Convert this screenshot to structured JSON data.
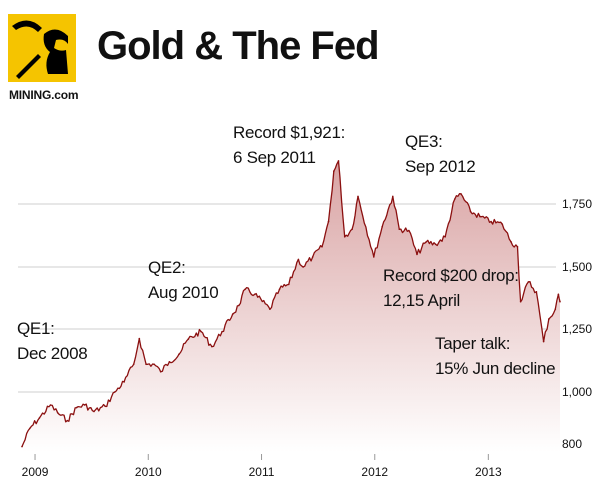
{
  "header": {
    "title": "Gold & The Fed",
    "brand": "MINING.com"
  },
  "annotations": [
    {
      "id": "qe1",
      "text": "QE1:\nDec 2008"
    },
    {
      "id": "qe2",
      "text": "QE2:\nAug 2010"
    },
    {
      "id": "record",
      "text": "Record $1,921:\n6 Sep 2011"
    },
    {
      "id": "qe3",
      "text": "QE3:\nSep 2012"
    },
    {
      "id": "drop",
      "text": "Record $200 drop:\n12,15 April"
    },
    {
      "id": "taper",
      "text": "Taper talk:\n15% Jun decline"
    }
  ],
  "colors": {
    "line": "#8b1010",
    "fill_top": "#d9a3a3",
    "fill_bottom": "#ffffff",
    "grid": "#cfcfcf",
    "logo_bg": "#f5c400",
    "logo_fg": "#000000"
  },
  "chart_data": {
    "type": "area",
    "title": "Gold & The Fed",
    "xlabel": "",
    "ylabel": "",
    "x_tick_labels": [
      "2009",
      "2010",
      "2011",
      "2012",
      "2013"
    ],
    "y_tick_labels": [
      "1,750",
      "1,500",
      "1,250",
      "1,000",
      "800"
    ],
    "ylim": [
      800,
      1950
    ],
    "xlim": [
      "2008-11-20",
      "2013-08-20"
    ],
    "grid": true,
    "series": [
      {
        "x": [
          "2008-11-20",
          "2008-12-15",
          "2009-01-15",
          "2009-02-20",
          "2009-03-15",
          "2009-04-15",
          "2009-05-15",
          "2009-06-10",
          "2009-07-10",
          "2009-08-15",
          "2009-09-15",
          "2009-10-15",
          "2009-11-15",
          "2009-12-03",
          "2009-12-25",
          "2010-01-20",
          "2010-02-10",
          "2010-03-10",
          "2010-04-10",
          "2010-05-10",
          "2010-06-20",
          "2010-07-25",
          "2010-08-27",
          "2010-09-30",
          "2010-10-20",
          "2010-11-09",
          "2010-12-10",
          "2011-01-28",
          "2011-02-28",
          "2011-03-30",
          "2011-04-30",
          "2011-05-15",
          "2011-06-15",
          "2011-07-15",
          "2011-08-05",
          "2011-08-22",
          "2011-09-06",
          "2011-09-26",
          "2011-10-20",
          "2011-11-08",
          "2011-12-29",
          "2012-01-25",
          "2012-02-28",
          "2012-03-20",
          "2012-04-20",
          "2012-05-16",
          "2012-06-15",
          "2012-07-15",
          "2012-08-15",
          "2012-09-15",
          "2012-10-05",
          "2012-11-05",
          "2012-12-05",
          "2013-01-10",
          "2013-02-15",
          "2013-03-15",
          "2013-04-05",
          "2013-04-15",
          "2013-05-10",
          "2013-06-05",
          "2013-06-28",
          "2013-07-15",
          "2013-08-05",
          "2013-08-15",
          "2013-08-20"
        ],
        "y": [
          790,
          860,
          900,
          950,
          920,
          890,
          940,
          950,
          925,
          945,
          1000,
          1040,
          1110,
          1212,
          1110,
          1110,
          1080,
          1120,
          1150,
          1210,
          1240,
          1180,
          1240,
          1310,
          1345,
          1410,
          1390,
          1330,
          1410,
          1430,
          1530,
          1500,
          1540,
          1580,
          1680,
          1880,
          1921,
          1620,
          1650,
          1780,
          1540,
          1660,
          1780,
          1650,
          1645,
          1550,
          1600,
          1590,
          1620,
          1770,
          1790,
          1720,
          1700,
          1680,
          1670,
          1600,
          1580,
          1360,
          1440,
          1400,
          1200,
          1290,
          1330,
          1390,
          1360
        ]
      }
    ]
  }
}
